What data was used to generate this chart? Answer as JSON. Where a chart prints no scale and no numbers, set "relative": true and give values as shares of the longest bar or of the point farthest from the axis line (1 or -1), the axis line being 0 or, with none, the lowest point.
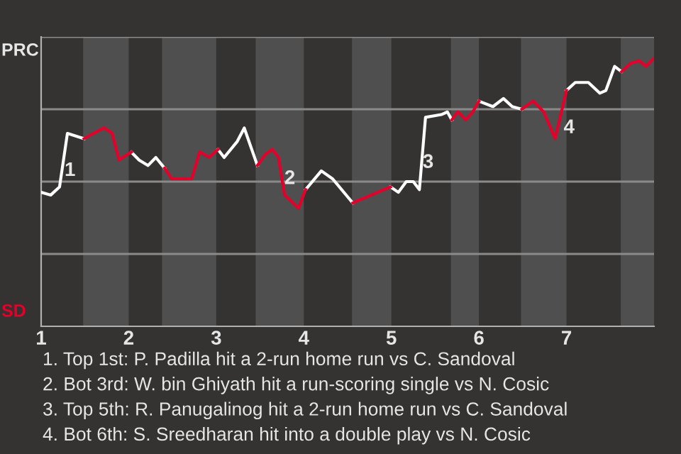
{
  "chart_data": {
    "type": "line",
    "relative": true,
    "xlim": [
      1,
      8
    ],
    "xticks": [
      1,
      2,
      3,
      4,
      5,
      6,
      7
    ],
    "grid": "y",
    "line_style": "solid",
    "series": [
      {
        "color": "#ffffff",
        "x": [
          1.0,
          1.11,
          1.21,
          1.3,
          1.49,
          null,
          2.03,
          2.12,
          2.22,
          2.31,
          2.41,
          null,
          3.02,
          3.09,
          3.24,
          3.32,
          3.47,
          null,
          4.02,
          4.2,
          4.33,
          4.56,
          null,
          4.99,
          5.08,
          5.17,
          5.25,
          5.32,
          5.39,
          5.57,
          5.64,
          5.69,
          null,
          6.0,
          6.16,
          6.28,
          6.38,
          6.49,
          null,
          7.0,
          7.1,
          7.25,
          7.38,
          7.45,
          7.55,
          7.63
        ],
        "values": [
          0.5,
          0.49,
          0.52,
          0.72,
          0.7,
          null,
          0.65,
          0.62,
          0.6,
          0.63,
          0.59,
          null,
          0.66,
          0.63,
          0.69,
          0.74,
          0.6,
          null,
          0.51,
          0.58,
          0.55,
          0.46,
          null,
          0.52,
          0.5,
          0.54,
          0.54,
          0.51,
          0.78,
          0.79,
          0.8,
          0.77,
          null,
          0.84,
          0.82,
          0.85,
          0.82,
          0.81,
          null,
          0.88,
          0.91,
          0.91,
          0.87,
          0.88,
          0.97,
          0.95
        ]
      },
      {
        "color": "#e4002b",
        "x": [
          1.49,
          1.72,
          1.81,
          1.89,
          2.03,
          null,
          2.41,
          2.49,
          2.72,
          2.81,
          2.92,
          3.02,
          null,
          3.47,
          3.56,
          3.64,
          3.71,
          3.78,
          3.94,
          4.02,
          null,
          4.56,
          4.99,
          null,
          5.69,
          5.76,
          5.85,
          5.93,
          6.0,
          null,
          6.49,
          6.62,
          6.74,
          6.87,
          7.0,
          null,
          7.63,
          7.73,
          7.83,
          7.91,
          8.0
        ],
        "values": [
          0.7,
          0.74,
          0.72,
          0.62,
          0.65,
          null,
          0.59,
          0.55,
          0.55,
          0.65,
          0.63,
          0.66,
          null,
          0.6,
          0.64,
          0.66,
          0.63,
          0.49,
          0.44,
          0.51,
          null,
          0.46,
          0.52,
          null,
          0.77,
          0.8,
          0.77,
          0.8,
          0.84,
          null,
          0.81,
          0.84,
          0.8,
          0.7,
          0.88,
          null,
          0.95,
          0.98,
          0.99,
          0.97,
          1
        ]
      }
    ],
    "bands": [
      {
        "axis": "x",
        "from": 1.48,
        "to": 2,
        "color": "#4f4f4f"
      },
      {
        "axis": "x",
        "from": 2.38,
        "to": 3,
        "color": "#4f4f4f"
      },
      {
        "axis": "x",
        "from": 3.45,
        "to": 4,
        "color": "#4f4f4f"
      },
      {
        "axis": "x",
        "from": 4.55,
        "to": 5,
        "color": "#4f4f4f"
      },
      {
        "axis": "x",
        "from": 5.68,
        "to": 6,
        "color": "#4f4f4f"
      },
      {
        "axis": "x",
        "from": 6.48,
        "to": 7,
        "color": "#4f4f4f"
      },
      {
        "axis": "x",
        "from": 7.62,
        "to": 8,
        "color": "#4f4f4f"
      }
    ],
    "annotations": [
      "PRC",
      "SD",
      {
        "text": "1",
        "x": 1.33,
        "y": 0.58
      },
      {
        "text": "2",
        "x": 3.84,
        "y": 0.55
      },
      {
        "text": "3",
        "x": 5.42,
        "y": 0.61
      },
      {
        "text": "4",
        "x": 7.03,
        "y": 0.74
      },
      "1. Top 1st: P. Padilla hit a 2-run home run vs C. Sandoval",
      "2. Bot 3rd: W. bin Ghiyath hit a run-scoring single vs N. Cosic",
      "3. Top 5th: R. Panugalinog hit a 2-run home run vs C. Sandoval",
      "4. Bot 6th: S. Sreedharan hit into a double play vs N. Cosic"
    ]
  }
}
